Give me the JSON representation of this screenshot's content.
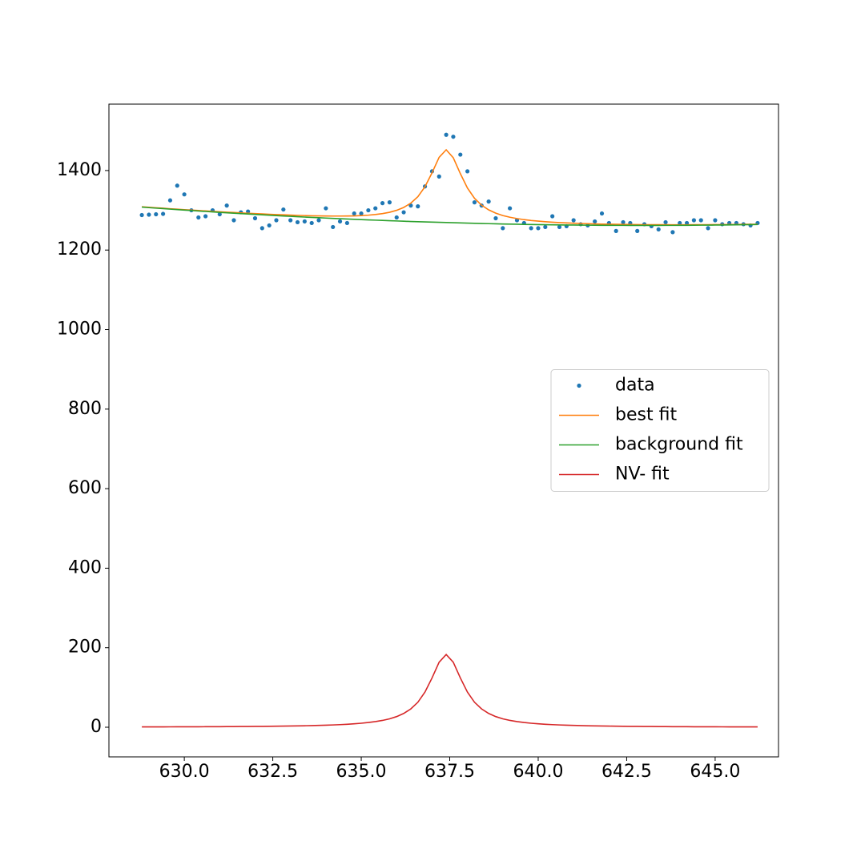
{
  "chart_data": {
    "type": "line",
    "x": [
      628.8,
      629.0,
      629.2,
      629.4,
      629.6,
      629.8,
      630.0,
      630.2,
      630.4,
      630.6,
      630.8,
      631.0,
      631.2,
      631.4,
      631.6,
      631.8,
      632.0,
      632.2,
      632.4,
      632.6,
      632.8,
      633.0,
      633.2,
      633.4,
      633.6,
      633.8,
      634.0,
      634.2,
      634.4,
      634.6,
      634.8,
      635.0,
      635.2,
      635.4,
      635.6,
      635.8,
      636.0,
      636.2,
      636.4,
      636.6,
      636.8,
      637.0,
      637.2,
      637.4,
      637.6,
      637.8,
      638.0,
      638.2,
      638.4,
      638.6,
      638.8,
      639.0,
      639.2,
      639.4,
      639.6,
      639.8,
      640.0,
      640.2,
      640.4,
      640.6,
      640.8,
      641.0,
      641.2,
      641.4,
      641.6,
      641.8,
      642.0,
      642.2,
      642.4,
      642.6,
      642.8,
      643.0,
      643.2,
      643.4,
      643.6,
      643.8,
      644.0,
      644.2,
      644.4,
      644.6,
      644.8,
      645.0,
      645.2,
      645.4,
      645.6,
      645.8,
      646.0,
      646.2
    ],
    "series": [
      {
        "name": "data",
        "color": "#1f77b4",
        "style": "points",
        "values": [
          1288,
          1289,
          1290,
          1291,
          1325,
          1362,
          1340,
          1300,
          1282,
          1285,
          1300,
          1290,
          1312,
          1275,
          1295,
          1297,
          1280,
          1255,
          1262,
          1275,
          1302,
          1275,
          1270,
          1272,
          1268,
          1275,
          1305,
          1258,
          1272,
          1268,
          1292,
          1292,
          1300,
          1305,
          1318,
          1320,
          1282,
          1295,
          1312,
          1310,
          1360,
          1398,
          1385,
          1490,
          1485,
          1440,
          1398,
          1320,
          1312,
          1322,
          1280,
          1255,
          1305,
          1275,
          1268,
          1255,
          1255,
          1258,
          1285,
          1258,
          1260,
          1275,
          1265,
          1262,
          1272,
          1292,
          1268,
          1248,
          1270,
          1268,
          1248,
          1265,
          1260,
          1252,
          1270,
          1245,
          1268,
          1268,
          1275,
          1275,
          1255,
          1275,
          1265,
          1268,
          1268,
          1265,
          1262,
          1268
        ]
      },
      {
        "name": "best fit",
        "color": "#ff7f0e",
        "style": "line",
        "values": [
          1308.8,
          1307.6,
          1306.3,
          1305.2,
          1303.9,
          1302.8,
          1301.6,
          1300.6,
          1299.5,
          1298.4,
          1297.3,
          1296.3,
          1295.3,
          1294.4,
          1293.4,
          1292.5,
          1291.7,
          1290.9,
          1290.0,
          1289.3,
          1288.6,
          1287.9,
          1287.3,
          1286.8,
          1286.3,
          1285.9,
          1285.7,
          1285.5,
          1285.5,
          1285.6,
          1286.0,
          1286.7,
          1287.8,
          1289.4,
          1291.7,
          1295.0,
          1300.0,
          1307.2,
          1318.0,
          1334.2,
          1359.2,
          1394.2,
          1433.2,
          1452.2,
          1432.2,
          1392.2,
          1356.1,
          1330.2,
          1312.9,
          1301.1,
          1292.8,
          1286.8,
          1282.5,
          1279.2,
          1276.5,
          1274.4,
          1272.8,
          1271.3,
          1270.1,
          1269.1,
          1268.3,
          1267.5,
          1266.9,
          1266.4,
          1265.8,
          1265.4,
          1265.1,
          1264.7,
          1264.5,
          1264.3,
          1264.1,
          1263.9,
          1263.8,
          1263.7,
          1263.7,
          1263.6,
          1263.6,
          1263.6,
          1263.7,
          1263.8,
          1263.8,
          1264.0,
          1264.1,
          1264.3,
          1264.4,
          1264.7,
          1264.9,
          1265.1
        ]
      },
      {
        "name": "background fit",
        "color": "#2ca02c",
        "style": "line",
        "values": [
          1308.0,
          1306.7,
          1305.4,
          1304.2,
          1302.9,
          1301.7,
          1300.5,
          1299.4,
          1298.2,
          1297.1,
          1295.9,
          1294.8,
          1293.7,
          1292.7,
          1291.6,
          1290.6,
          1289.6,
          1288.6,
          1287.6,
          1286.7,
          1285.7,
          1284.8,
          1283.9,
          1283.0,
          1282.1,
          1281.3,
          1280.5,
          1279.7,
          1278.9,
          1278.1,
          1277.3,
          1276.6,
          1275.9,
          1275.2,
          1274.5,
          1273.8,
          1273.2,
          1272.5,
          1271.9,
          1271.3,
          1270.8,
          1270.2,
          1269.7,
          1269.2,
          1268.7,
          1268.2,
          1267.7,
          1267.3,
          1266.8,
          1266.4,
          1266.0,
          1265.6,
          1265.3,
          1265.0,
          1264.6,
          1264.3,
          1264.1,
          1263.8,
          1263.5,
          1263.3,
          1263.1,
          1262.9,
          1262.7,
          1262.6,
          1262.4,
          1262.3,
          1262.2,
          1262.1,
          1262.1,
          1262.0,
          1262.0,
          1262.0,
          1262.0,
          1262.0,
          1262.1,
          1262.1,
          1262.2,
          1262.3,
          1262.4,
          1262.6,
          1262.7,
          1262.9,
          1263.1,
          1263.3,
          1263.5,
          1263.8,
          1264.1,
          1264.3
        ]
      },
      {
        "name": "NV- fit",
        "color": "#d62728",
        "style": "line",
        "values": [
          0.83,
          0.87,
          0.91,
          0.96,
          1.01,
          1.06,
          1.12,
          1.18,
          1.25,
          1.32,
          1.4,
          1.49,
          1.59,
          1.69,
          1.81,
          1.94,
          2.09,
          2.25,
          2.43,
          2.63,
          2.86,
          3.13,
          3.43,
          3.77,
          4.17,
          4.64,
          5.18,
          5.83,
          6.59,
          7.52,
          8.67,
          10.1,
          11.9,
          14.19,
          17.2,
          21.2,
          26.8,
          34.7,
          46.1,
          62.9,
          88.4,
          124.0,
          163.5,
          183,
          163.5,
          124.0,
          88.4,
          62.9,
          46.1,
          34.7,
          26.8,
          21.2,
          17.2,
          14.19,
          11.9,
          10.1,
          8.67,
          7.52,
          6.59,
          5.83,
          5.18,
          4.64,
          4.17,
          3.77,
          3.43,
          3.13,
          2.86,
          2.63,
          2.43,
          2.25,
          2.09,
          1.94,
          1.81,
          1.69,
          1.59,
          1.49,
          1.4,
          1.32,
          1.25,
          1.18,
          1.12,
          1.06,
          1.01,
          0.96,
          0.91,
          0.87,
          0.83,
          0.8
        ]
      }
    ],
    "xlim": [
      627.87,
      646.79
    ],
    "xticks": [
      {
        "value": 630,
        "label": "630.0"
      },
      632.5,
      {
        "value": 635,
        "label": "635.0"
      },
      637.5,
      {
        "value": 640,
        "label": "640.0"
      },
      642.5,
      {
        "value": 645,
        "label": "645.0"
      }
    ],
    "ylim": [
      -74.5,
      1567
    ],
    "yticks": [
      0,
      200,
      400,
      600,
      800,
      1000,
      1200,
      1400
    ],
    "legend": "center right",
    "grid": false
  }
}
